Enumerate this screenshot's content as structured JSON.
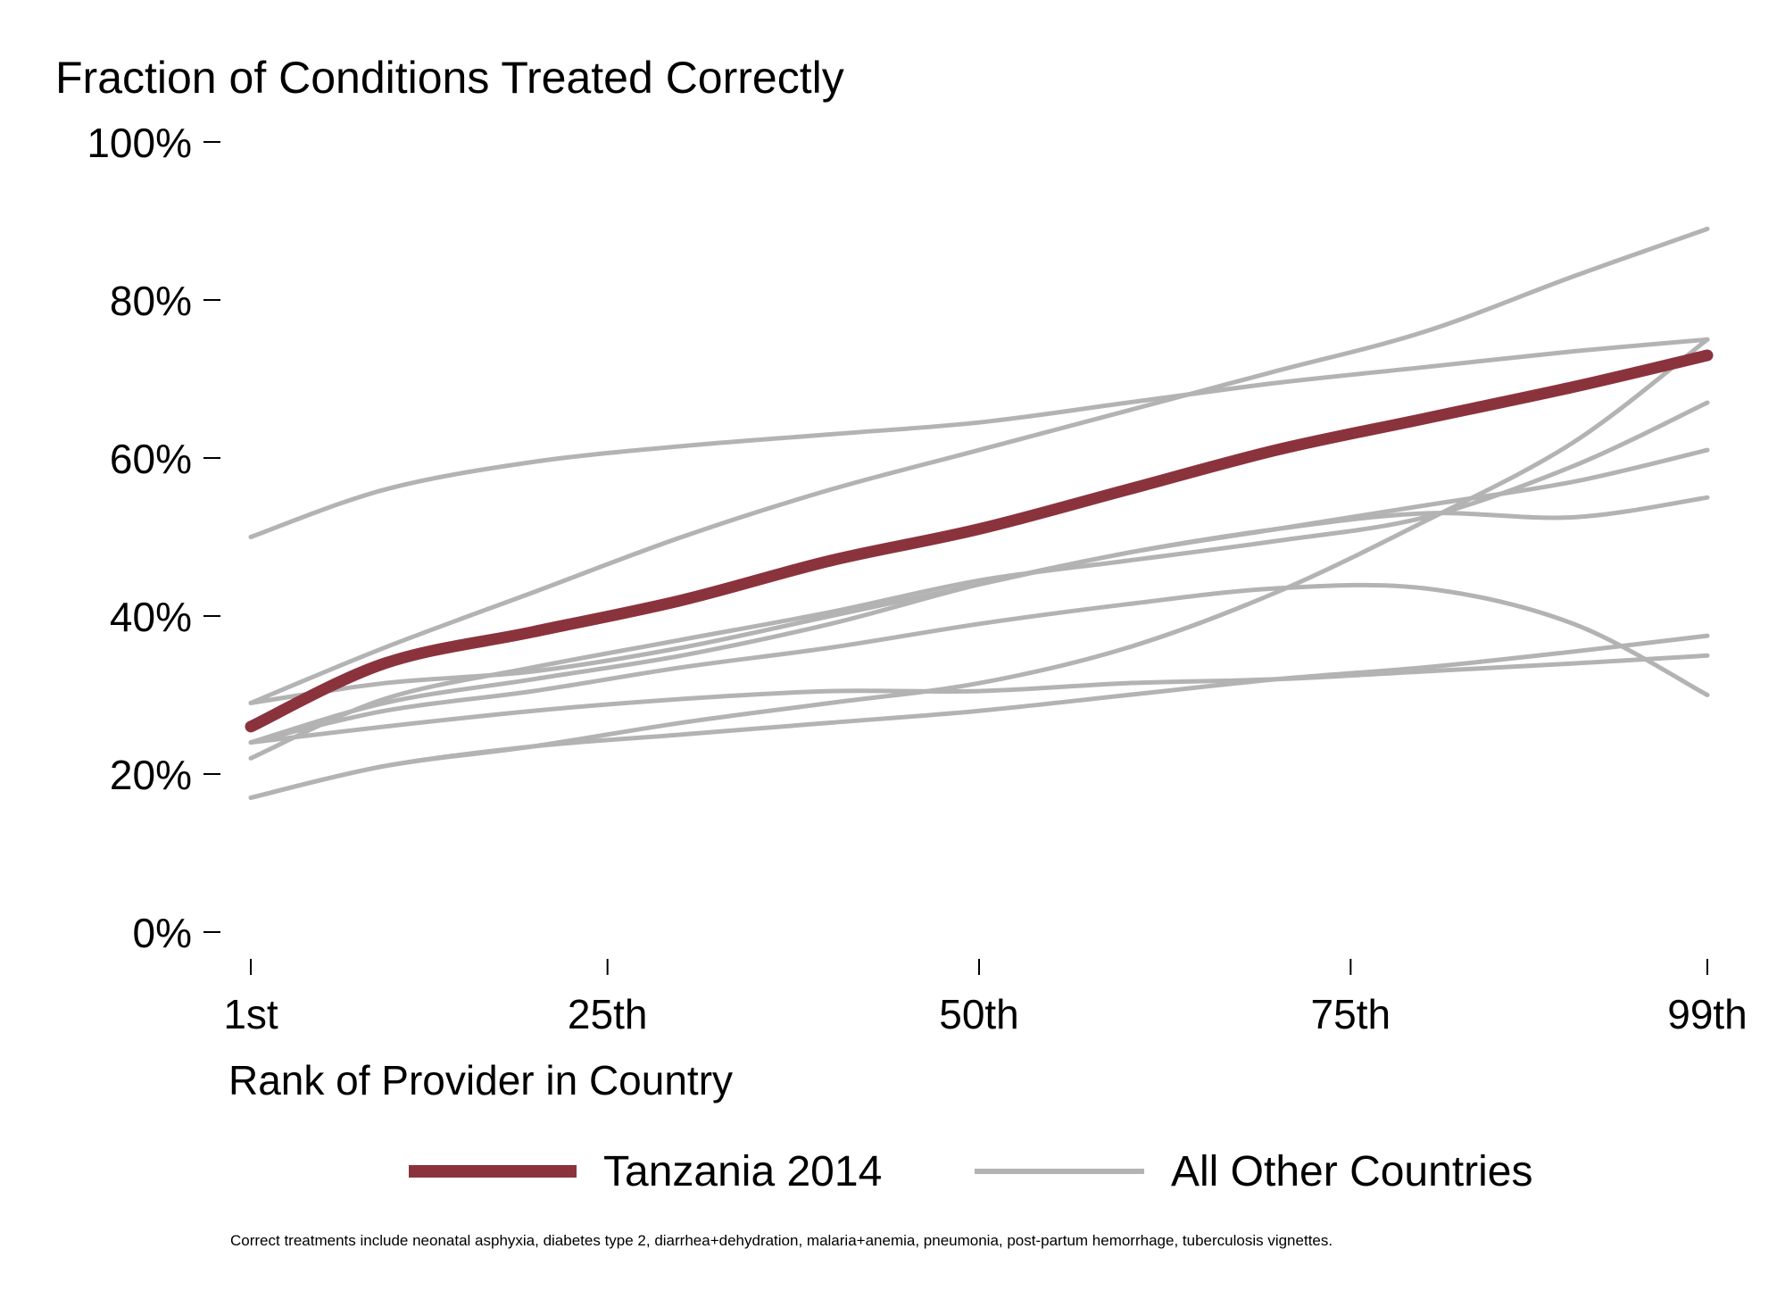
{
  "chart_data": {
    "type": "line",
    "title": "Fraction of Conditions Treated Correctly",
    "xlabel": "Rank of Provider in Country",
    "ylabel": "",
    "footnote": "Correct treatments include neonatal asphyxia, diabetes type 2, diarrhea+dehydration, malaria+anemia, pneumonia, post-partum hemorrhage, tuberculosis vignettes.",
    "x_ticks": [
      {
        "value": 1,
        "label": "1st"
      },
      {
        "value": 25,
        "label": "25th"
      },
      {
        "value": 50,
        "label": "50th"
      },
      {
        "value": 75,
        "label": "75th"
      },
      {
        "value": 99,
        "label": "99th"
      }
    ],
    "y_ticks": [
      {
        "value": 0,
        "label": "0%"
      },
      {
        "value": 20,
        "label": "20%"
      },
      {
        "value": 40,
        "label": "40%"
      },
      {
        "value": 60,
        "label": "60%"
      },
      {
        "value": 80,
        "label": "80%"
      },
      {
        "value": 100,
        "label": "100%"
      }
    ],
    "xlim": [
      1,
      99
    ],
    "ylim": [
      0,
      100
    ],
    "grid": false,
    "legend": {
      "placement": "bottom",
      "entries": [
        {
          "label": "Tanzania 2014",
          "color": "#8B333D"
        },
        {
          "label": "All Other Countries",
          "color": "#B3B3B3"
        }
      ]
    },
    "x": [
      1,
      10,
      20,
      30,
      40,
      50,
      60,
      70,
      80,
      90,
      99
    ],
    "series": [
      {
        "group": "Tanzania 2014",
        "color": "#8B333D",
        "values": [
          26,
          34,
          38,
          42,
          47,
          51,
          56,
          61,
          65,
          69,
          73
        ]
      },
      {
        "group": "All Other Countries",
        "color": "#B3B3B3",
        "values": [
          50,
          56,
          59.5,
          61.5,
          63,
          64.5,
          67,
          69.5,
          71.5,
          73.5,
          75
        ]
      },
      {
        "group": "All Other Countries",
        "color": "#B3B3B3",
        "values": [
          29,
          36,
          43,
          50,
          56,
          61,
          66,
          71,
          76,
          83,
          89
        ]
      },
      {
        "group": "All Other Countries",
        "color": "#B3B3B3",
        "values": [
          29,
          31.5,
          33,
          36,
          40,
          44,
          48,
          51,
          53,
          52.5,
          55
        ]
      },
      {
        "group": "All Other Countries",
        "color": "#B3B3B3",
        "values": [
          24,
          29,
          32,
          35,
          39,
          44,
          48,
          51,
          54,
          57,
          61
        ]
      },
      {
        "group": "All Other Countries",
        "color": "#B3B3B3",
        "values": [
          22,
          29.5,
          33.5,
          37,
          40.5,
          44.5,
          47,
          49.5,
          52.5,
          59,
          67
        ]
      },
      {
        "group": "All Other Countries",
        "color": "#B3B3B3",
        "values": [
          24,
          28,
          30.5,
          33.5,
          36,
          39,
          41.5,
          43.5,
          43.5,
          39,
          30
        ]
      },
      {
        "group": "All Other Countries",
        "color": "#B3B3B3",
        "values": [
          17,
          21,
          23.5,
          26.5,
          29,
          31.5,
          36,
          43,
          52,
          62,
          75
        ]
      },
      {
        "group": "All Other Countries",
        "color": "#B3B3B3",
        "values": [
          17,
          21,
          23.5,
          25,
          26.5,
          28,
          30,
          32,
          33.5,
          35.5,
          37.5
        ]
      },
      {
        "group": "All Other Countries",
        "color": "#B3B3B3",
        "values": [
          24,
          26,
          28,
          29.5,
          30.5,
          30.5,
          31.5,
          32,
          33,
          34,
          35
        ]
      }
    ]
  }
}
